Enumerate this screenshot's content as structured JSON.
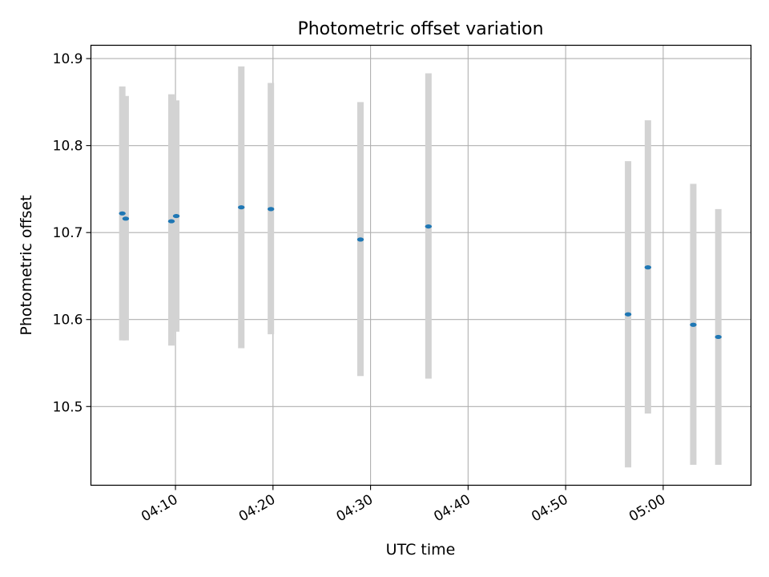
{
  "chart_data": {
    "type": "scatter",
    "title": "Photometric offset variation",
    "xlabel": "UTC time",
    "ylabel": "Photometric offset",
    "xlim": [
      "04:01:20",
      "05:09:00"
    ],
    "ylim": [
      10.4095,
      10.9153
    ],
    "x_ticks": [
      "04:10",
      "04:20",
      "04:30",
      "04:40",
      "04:50",
      "05:00"
    ],
    "y_ticks": [
      10.5,
      10.6,
      10.7,
      10.8,
      10.9
    ],
    "y_tick_labels": [
      "10.5",
      "10.6",
      "10.7",
      "10.8",
      "10.9"
    ],
    "grid": true,
    "series": [
      {
        "points": [
          {
            "time": "04:04:33",
            "value": 10.722,
            "yerr_low": 10.576,
            "yerr_high": 10.868
          },
          {
            "time": "04:04:54",
            "value": 10.716,
            "yerr_low": 10.576,
            "yerr_high": 10.857
          },
          {
            "time": "04:09:35",
            "value": 10.713,
            "yerr_low": 10.57,
            "yerr_high": 10.859
          },
          {
            "time": "04:10:05",
            "value": 10.719,
            "yerr_low": 10.586,
            "yerr_high": 10.852
          },
          {
            "time": "04:16:45",
            "value": 10.729,
            "yerr_low": 10.567,
            "yerr_high": 10.891
          },
          {
            "time": "04:19:47",
            "value": 10.727,
            "yerr_low": 10.583,
            "yerr_high": 10.872
          },
          {
            "time": "04:28:58",
            "value": 10.692,
            "yerr_low": 10.535,
            "yerr_high": 10.85
          },
          {
            "time": "04:35:56",
            "value": 10.707,
            "yerr_low": 10.532,
            "yerr_high": 10.883
          },
          {
            "time": "04:56:24",
            "value": 10.606,
            "yerr_low": 10.43,
            "yerr_high": 10.782
          },
          {
            "time": "04:58:26",
            "value": 10.66,
            "yerr_low": 10.492,
            "yerr_high": 10.829
          },
          {
            "time": "05:03:05",
            "value": 10.594,
            "yerr_low": 10.433,
            "yerr_high": 10.756
          },
          {
            "time": "05:05:39",
            "value": 10.58,
            "yerr_low": 10.433,
            "yerr_high": 10.727
          }
        ]
      }
    ]
  },
  "colors": {
    "marker": "#1f77b4",
    "errorbar": "#d3d3d3",
    "grid": "#b0b0b0",
    "axis": "#000000"
  }
}
